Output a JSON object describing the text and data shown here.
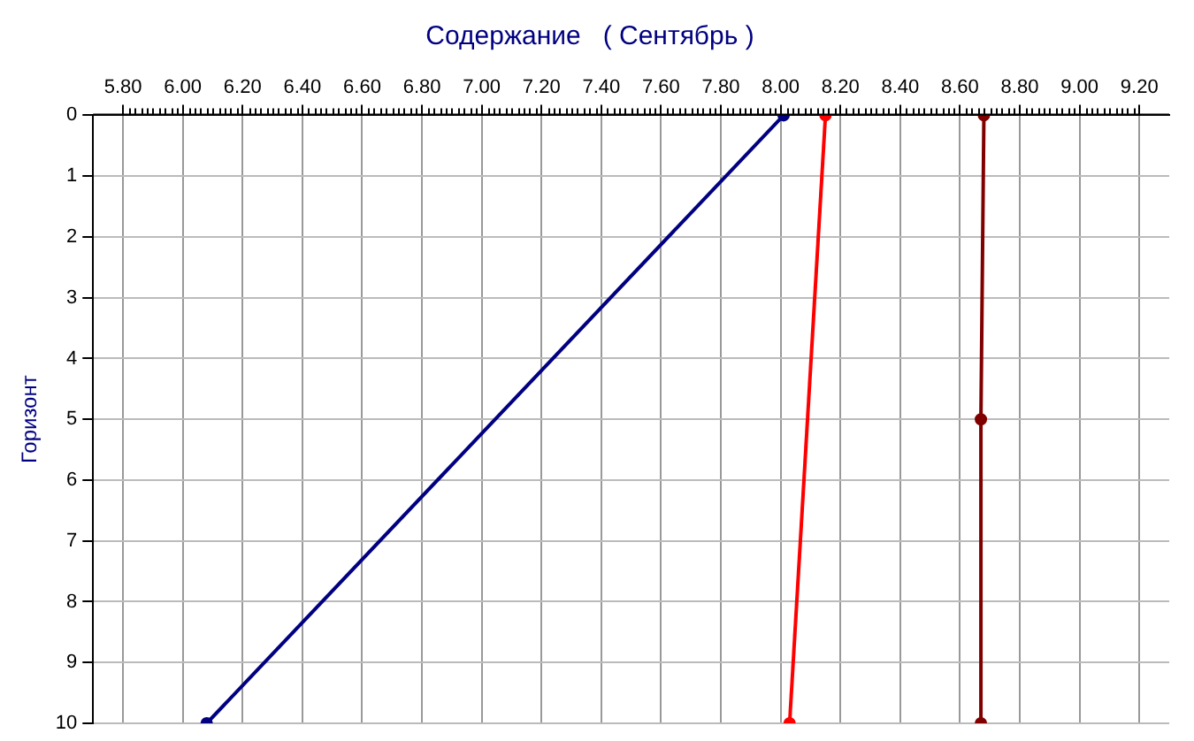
{
  "chart_data": {
    "type": "line",
    "title": "Содержание   ( Сентябрь )",
    "ylabel": "Горизонт",
    "xlim": [
      5.7,
      9.3
    ],
    "xticks": [
      {
        "value": 5.8,
        "label": "5.80"
      },
      {
        "value": 6.0,
        "label": "6.00"
      },
      {
        "value": 6.2,
        "label": "6.20"
      },
      {
        "value": 6.4,
        "label": "6.40"
      },
      {
        "value": 6.6,
        "label": "6.60"
      },
      {
        "value": 6.8,
        "label": "6.80"
      },
      {
        "value": 7.0,
        "label": "7.00"
      },
      {
        "value": 7.2,
        "label": "7.20"
      },
      {
        "value": 7.4,
        "label": "7.40"
      },
      {
        "value": 7.6,
        "label": "7.60"
      },
      {
        "value": 7.8,
        "label": "7.80"
      },
      {
        "value": 8.0,
        "label": "8.00"
      },
      {
        "value": 8.2,
        "label": "8.20"
      },
      {
        "value": 8.4,
        "label": "8.40"
      },
      {
        "value": 8.6,
        "label": "8.60"
      },
      {
        "value": 8.8,
        "label": "8.80"
      },
      {
        "value": 9.0,
        "label": "9.00"
      },
      {
        "value": 9.2,
        "label": "9.20"
      }
    ],
    "ylim": [
      10,
      0
    ],
    "yticks": [
      0,
      1,
      2,
      3,
      4,
      5,
      6,
      7,
      8,
      9,
      10
    ],
    "grid": true,
    "legend": false,
    "marker": "circle",
    "line_style": "solid",
    "series": [
      {
        "color": "#000080",
        "x": [
          8.01,
          6.08
        ],
        "values": [
          0,
          10
        ]
      },
      {
        "color": "#ff0000",
        "x": [
          8.15,
          8.03
        ],
        "values": [
          0,
          10
        ]
      },
      {
        "color": "#800000",
        "x": [
          8.68,
          8.67,
          8.67
        ],
        "values": [
          0,
          5,
          10
        ]
      }
    ]
  }
}
